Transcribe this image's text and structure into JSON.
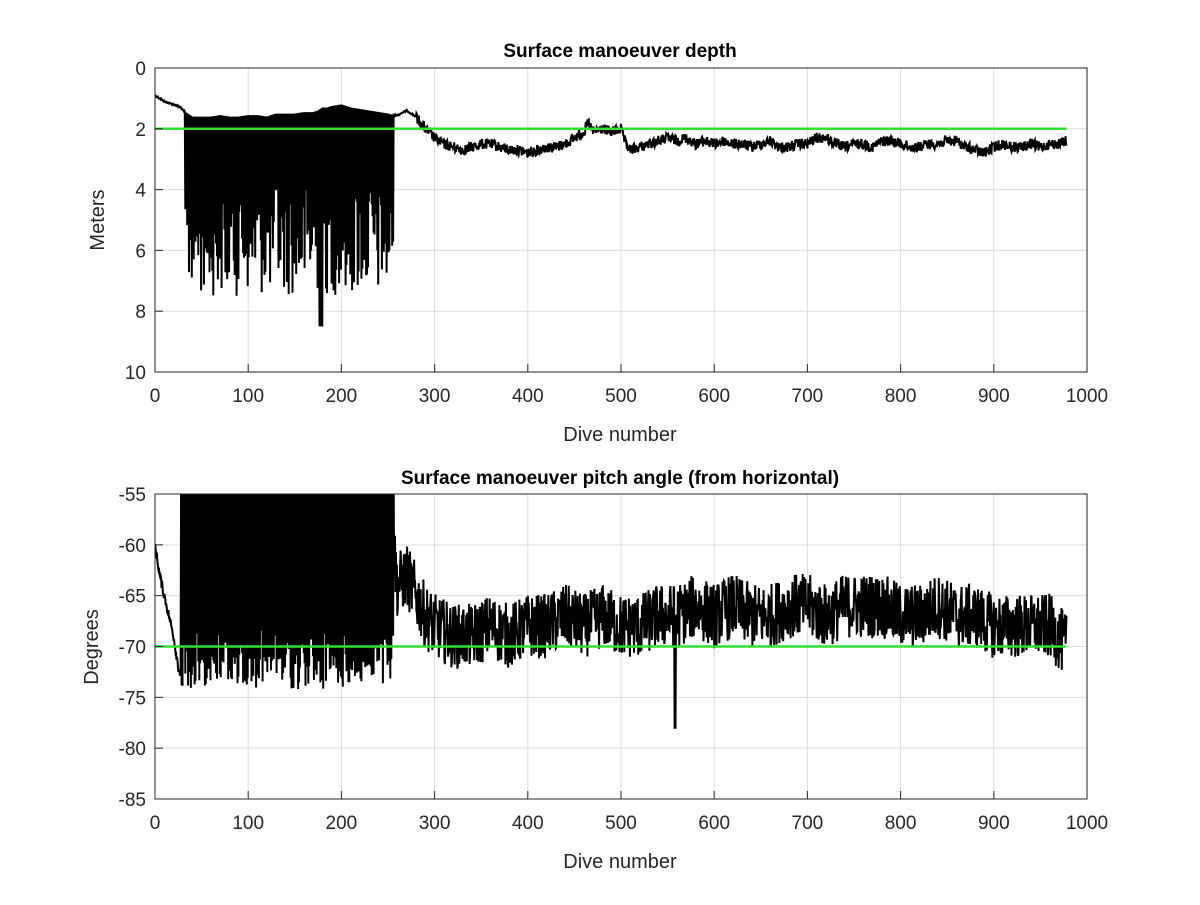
{
  "chart_data": [
    {
      "type": "line",
      "title": "Surface manoeuver depth",
      "xlabel": "Dive number",
      "ylabel": "Meters",
      "xlim": [
        0,
        1000
      ],
      "ylim": [
        0,
        10
      ],
      "y_reversed": true,
      "grid": true,
      "xticks": [
        "0",
        "100",
        "200",
        "300",
        "400",
        "500",
        "600",
        "700",
        "800",
        "900",
        "1000"
      ],
      "yticks": [
        "0",
        "2",
        "4",
        "6",
        "8",
        "10"
      ],
      "line_color": "#000000",
      "reference_line": {
        "y": 2,
        "color": "#33dd33"
      },
      "series_anchors": {
        "x": [
          0,
          10,
          20,
          28,
          30,
          35,
          40,
          50,
          60,
          70,
          80,
          90,
          100,
          110,
          120,
          130,
          140,
          150,
          160,
          170,
          175,
          180,
          185,
          190,
          200,
          210,
          220,
          230,
          240,
          250,
          256,
          260,
          270,
          280,
          290,
          300,
          310,
          320,
          330,
          340,
          350,
          360,
          370,
          380,
          390,
          400,
          410,
          420,
          430,
          440,
          450,
          460,
          465,
          470,
          480,
          490,
          500,
          505,
          510,
          520,
          530,
          540,
          550,
          560,
          570,
          580,
          590,
          600,
          610,
          620,
          630,
          640,
          650,
          660,
          670,
          680,
          690,
          700,
          710,
          720,
          730,
          740,
          750,
          760,
          770,
          780,
          790,
          800,
          810,
          820,
          830,
          840,
          850,
          860,
          870,
          880,
          890,
          900,
          910,
          920,
          930,
          940,
          950,
          960,
          970,
          978
        ],
        "y": [
          0.9,
          1.1,
          1.2,
          1.3,
          1.4,
          1.5,
          1.6,
          1.6,
          1.6,
          1.55,
          1.6,
          1.6,
          1.55,
          1.55,
          1.6,
          1.5,
          1.5,
          1.5,
          1.45,
          1.45,
          1.4,
          1.3,
          1.3,
          1.25,
          1.2,
          1.3,
          1.35,
          1.4,
          1.45,
          1.5,
          1.55,
          1.55,
          1.4,
          1.6,
          2.0,
          2.3,
          2.5,
          2.6,
          2.7,
          2.6,
          2.5,
          2.5,
          2.6,
          2.7,
          2.7,
          2.8,
          2.7,
          2.6,
          2.6,
          2.5,
          2.3,
          2.1,
          1.8,
          2.1,
          2.0,
          2.1,
          2.0,
          2.5,
          2.7,
          2.6,
          2.5,
          2.4,
          2.3,
          2.4,
          2.3,
          2.5,
          2.4,
          2.5,
          2.4,
          2.5,
          2.5,
          2.6,
          2.5,
          2.4,
          2.6,
          2.6,
          2.5,
          2.5,
          2.3,
          2.3,
          2.5,
          2.6,
          2.5,
          2.5,
          2.6,
          2.4,
          2.4,
          2.5,
          2.6,
          2.6,
          2.5,
          2.5,
          2.4,
          2.4,
          2.6,
          2.7,
          2.8,
          2.6,
          2.5,
          2.6,
          2.6,
          2.5,
          2.6,
          2.5,
          2.5,
          2.4
        ]
      },
      "oscillation_range": {
        "x": [
          32,
          256
        ],
        "trough_depth_typical": [
          3.5,
          7.5
        ],
        "max_depth": 8.5,
        "max_depth_x": 178
      }
    },
    {
      "type": "line",
      "title": "Surface manoeuver pitch angle (from horizontal)",
      "xlabel": "Dive number",
      "ylabel": "Degrees",
      "xlim": [
        0,
        1000
      ],
      "ylim": [
        -85,
        -55
      ],
      "grid": true,
      "xticks": [
        "0",
        "100",
        "200",
        "300",
        "400",
        "500",
        "600",
        "700",
        "800",
        "900",
        "1000"
      ],
      "yticks": [
        "-55",
        "-60",
        "-65",
        "-70",
        "-75",
        "-80",
        "-85"
      ],
      "line_color": "#000000",
      "reference_line": {
        "y": -70,
        "color": "#33dd33"
      },
      "series_anchors": {
        "x": [
          0,
          5,
          10,
          15,
          20,
          25,
          28,
          30,
          35,
          50,
          100,
          150,
          200,
          250,
          256,
          260,
          270,
          280,
          290,
          300,
          320,
          340,
          360,
          380,
          400,
          420,
          440,
          460,
          480,
          500,
          520,
          540,
          560,
          580,
          600,
          620,
          640,
          660,
          680,
          700,
          720,
          740,
          760,
          780,
          800,
          820,
          840,
          860,
          880,
          900,
          920,
          940,
          960,
          978
        ],
        "y": [
          -60,
          -63,
          -65,
          -67,
          -69,
          -72,
          -73,
          -60,
          -55,
          -55,
          -55,
          -55,
          -55,
          -55,
          -60,
          -64,
          -63,
          -65,
          -67,
          -68,
          -69,
          -69,
          -68,
          -69,
          -68,
          -68,
          -67,
          -68,
          -67,
          -68,
          -68,
          -67,
          -67,
          -66,
          -67,
          -66,
          -67,
          -67,
          -66,
          -66,
          -67,
          -66,
          -66,
          -66,
          -67,
          -67,
          -66,
          -67,
          -67,
          -68,
          -68,
          -68,
          -68,
          -70
        ]
      },
      "oscillation_range": {
        "x": [
          28,
          256
        ],
        "trough_typical": [
          -70,
          -74
        ],
        "clip_top": -55
      },
      "noise_amplitude_deg": 3.2,
      "notable_min": {
        "x": 558,
        "y": -78
      }
    }
  ]
}
